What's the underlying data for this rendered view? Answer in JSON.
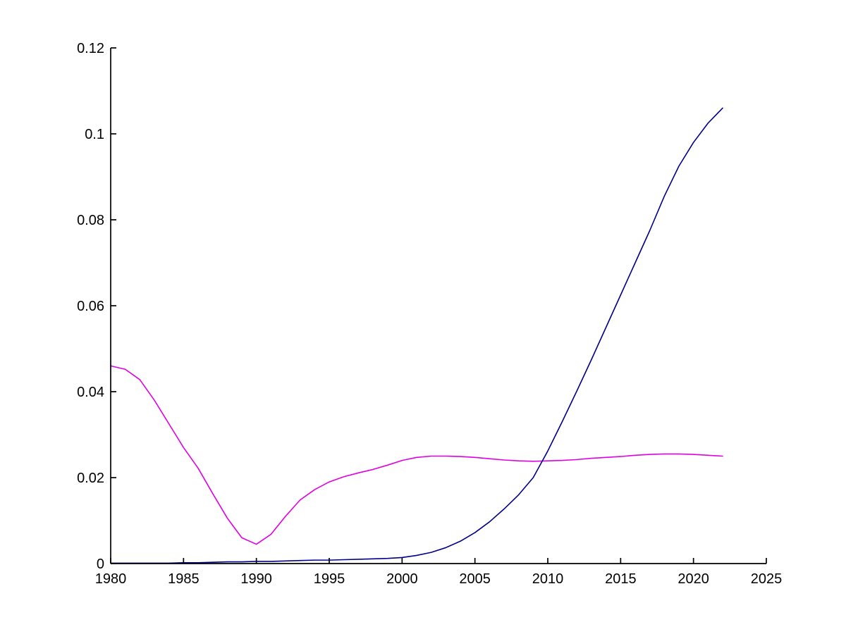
{
  "figure": {
    "background": "#ffffff",
    "axis_color": "#000000",
    "tick_label_color": "#000000"
  },
  "chart_data": {
    "type": "line",
    "title": "",
    "xlabel": "",
    "ylabel": "",
    "grid": false,
    "legend": "none",
    "xlim": [
      1980,
      2025
    ],
    "ylim": [
      0,
      0.12
    ],
    "x_ticks": [
      1980,
      1985,
      1990,
      1995,
      2000,
      2005,
      2010,
      2015,
      2020,
      2025
    ],
    "x_tick_labels": [
      "1980",
      "1985",
      "1990",
      "1995",
      "2000",
      "2005",
      "2010",
      "2015",
      "2020",
      "2025"
    ],
    "y_ticks": [
      0,
      0.02,
      0.04,
      0.06,
      0.08,
      0.1,
      0.12
    ],
    "y_tick_labels": [
      "0",
      "0.02",
      "0.04",
      "0.06",
      "0.08",
      "0.1",
      "0.12"
    ],
    "x": [
      1980,
      1981,
      1982,
      1983,
      1984,
      1985,
      1986,
      1987,
      1988,
      1989,
      1990,
      1991,
      1992,
      1993,
      1994,
      1995,
      1996,
      1997,
      1998,
      1999,
      2000,
      2001,
      2002,
      2003,
      2004,
      2005,
      2006,
      2007,
      2008,
      2009,
      2010,
      2011,
      2012,
      2013,
      2014,
      2015,
      2016,
      2017,
      2018,
      2019,
      2020,
      2021,
      2022
    ],
    "series": [
      {
        "name": "magenta-series",
        "color": "#e100e1",
        "values": [
          0.046,
          0.0452,
          0.0428,
          0.038,
          0.0325,
          0.027,
          0.0222,
          0.0163,
          0.0106,
          0.006,
          0.0045,
          0.0068,
          0.011,
          0.0148,
          0.0172,
          0.019,
          0.0202,
          0.0211,
          0.0219,
          0.0229,
          0.024,
          0.0247,
          0.025,
          0.025,
          0.0249,
          0.0247,
          0.0244,
          0.0241,
          0.0239,
          0.0238,
          0.0239,
          0.024,
          0.0242,
          0.0245,
          0.0247,
          0.0249,
          0.0252,
          0.0254,
          0.0255,
          0.0255,
          0.0254,
          0.0252,
          0.025
        ]
      },
      {
        "name": "navy-series",
        "color": "#00008c",
        "values": [
          0.0001,
          0.0001,
          0.0001,
          0.0001,
          0.0001,
          0.0002,
          0.0002,
          0.0003,
          0.0004,
          0.0004,
          0.0005,
          0.0005,
          0.0006,
          0.0007,
          0.0008,
          0.0008,
          0.0009,
          0.001,
          0.0011,
          0.0012,
          0.0014,
          0.0019,
          0.0026,
          0.0037,
          0.0052,
          0.0072,
          0.0097,
          0.0127,
          0.016,
          0.02,
          0.0262,
          0.0331,
          0.0402,
          0.0475,
          0.055,
          0.0625,
          0.07,
          0.0775,
          0.0855,
          0.0925,
          0.098,
          0.1025,
          0.106
        ]
      }
    ]
  }
}
